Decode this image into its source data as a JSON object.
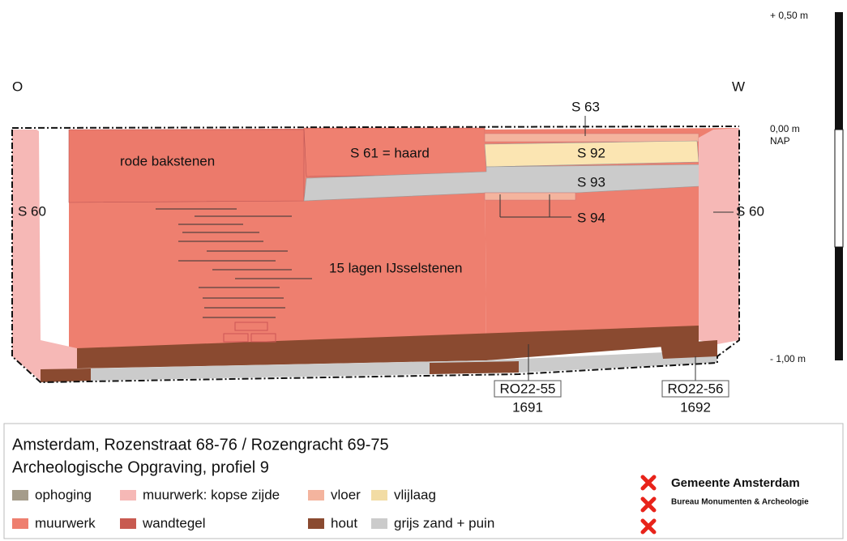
{
  "scale": {
    "top": "+ 0,50 m",
    "zero": "0,00 m",
    "datum": "NAP",
    "bottom": "- 1,00 m"
  },
  "orientation": {
    "left": "O",
    "right": "W"
  },
  "features": {
    "s63": "S 63",
    "bricks": "rode bakstenen",
    "s61": "S 61 = haard",
    "s92": "S 92",
    "s93": "S 93",
    "s94": "S 94",
    "s60": "S 60",
    "layers": "15 lagen IJsselstenen"
  },
  "samples": [
    {
      "code": "RO22-55",
      "year": "1691"
    },
    {
      "code": "RO22-56",
      "year": "1692"
    }
  ],
  "legend": {
    "title": [
      "Amsterdam, Rozenstraat 68-76 / Rozengracht 69-75",
      "Archeologische Opgraving, profiel 9"
    ],
    "items": [
      {
        "label": "ophoging",
        "color": "#a59c8a"
      },
      {
        "label": "muurwerk: kopse zijde",
        "color": "#f6b8b6"
      },
      {
        "label": "vloer",
        "color": "#f4b49e"
      },
      {
        "label": "vlijlaag",
        "color": "#f2dca4"
      },
      {
        "label": "muurwerk",
        "color": "#ee7f6f"
      },
      {
        "label": "wandtegel",
        "color": "#c85a50"
      },
      {
        "label": "hout",
        "color": "#8a4a30"
      },
      {
        "label": "grijs zand + puin",
        "color": "#cbcbcb"
      }
    ]
  },
  "logo": {
    "name": "Gemeente Amsterdam",
    "department": "Bureau Monumenten & Archeologie"
  }
}
